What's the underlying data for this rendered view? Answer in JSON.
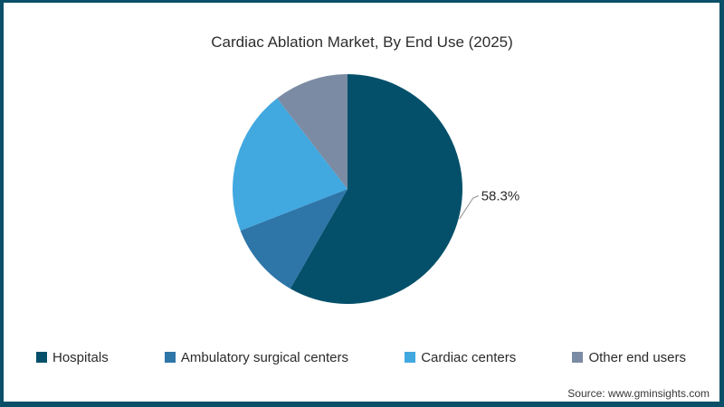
{
  "window": {
    "background": "#FFFFFF",
    "border_color": "#094F68"
  },
  "chart_data": {
    "type": "pie",
    "title": "Cardiac Ablation Market, By End Use (2025)",
    "start_angle_deg": 0,
    "direction": "clockwise",
    "legend_position": "bottom",
    "labeled_slice": "Hospitals",
    "callout_label": "58.3%",
    "slices": [
      {
        "label": "Hospitals",
        "value": 58.3,
        "color": "#04506A",
        "callout": "58.3%"
      },
      {
        "label": "Ambulatory surgical centers",
        "value": 10.8,
        "color": "#2E75A8"
      },
      {
        "label": "Cardiac centers",
        "value": 20.4,
        "color": "#41A8E0"
      },
      {
        "label": "Other end users",
        "value": 10.5,
        "color": "#7B8BA3"
      }
    ]
  },
  "source": {
    "text": "Source: www.gminsights.com"
  }
}
